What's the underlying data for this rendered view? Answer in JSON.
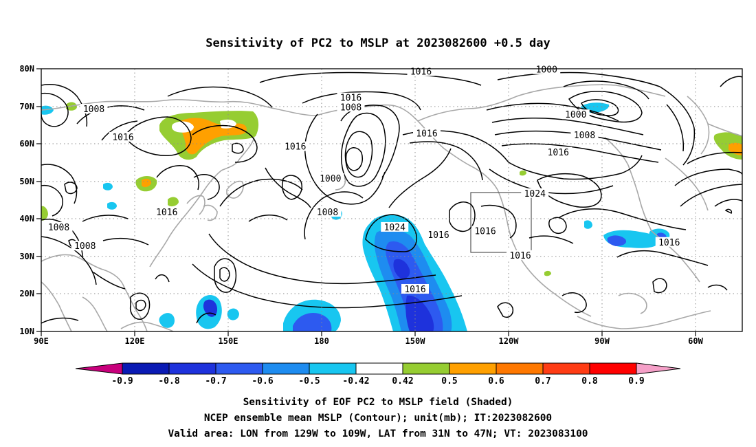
{
  "title": "Sensitivity of PC2 to MSLP at 2023082600 +0.5 day",
  "map": {
    "lat_labels": [
      "80N",
      "70N",
      "60N",
      "50N",
      "40N",
      "30N",
      "20N",
      "10N"
    ],
    "lon_labels": [
      "90E",
      "120E",
      "150E",
      "180",
      "150W",
      "120W",
      "90W",
      "60W"
    ],
    "contour_labels": [
      {
        "text": "1016",
        "lon": -140,
        "lat": 79
      },
      {
        "text": "1000",
        "lon": -97,
        "lat": 79.5
      },
      {
        "text": "1016",
        "lon": -164,
        "lat": 72
      },
      {
        "text": "1008",
        "lon": -164,
        "lat": 69.5
      },
      {
        "text": "1008",
        "lon": 108,
        "lat": 69
      },
      {
        "text": "1000",
        "lon": -87,
        "lat": 67.5
      },
      {
        "text": "1016",
        "lon": -138,
        "lat": 62.5
      },
      {
        "text": "1016",
        "lon": 118,
        "lat": 61.5
      },
      {
        "text": "1008",
        "lon": -84,
        "lat": 62
      },
      {
        "text": "1016",
        "lon": 177,
        "lat": 59
      },
      {
        "text": "1016",
        "lon": -93,
        "lat": 57.5
      },
      {
        "text": "1000",
        "lon": -171,
        "lat": 50.5
      },
      {
        "text": "1024",
        "lon": -101,
        "lat": 46.5
      },
      {
        "text": "1016",
        "lon": 133,
        "lat": 41.5
      },
      {
        "text": "1008",
        "lon": -172,
        "lat": 41.5
      },
      {
        "text": "1024",
        "lon": -149,
        "lat": 37.5
      },
      {
        "text": "1016",
        "lon": -134,
        "lat": 35.5
      },
      {
        "text": "1016",
        "lon": -118,
        "lat": 36.5
      },
      {
        "text": "1008",
        "lon": 96,
        "lat": 37.5
      },
      {
        "text": "1016",
        "lon": -55,
        "lat": 33.5
      },
      {
        "text": "1008",
        "lon": 105,
        "lat": 32.5
      },
      {
        "text": "1016",
        "lon": -106,
        "lat": 30
      },
      {
        "text": "1016",
        "lon": -142,
        "lat": 21
      }
    ]
  },
  "colorbar": {
    "labels": [
      "-0.9",
      "-0.8",
      "-0.7",
      "-0.6",
      "-0.5",
      "-0.42",
      "0.42",
      "0.5",
      "0.6",
      "0.7",
      "0.8",
      "0.9"
    ],
    "colors": [
      "#c8007c",
      "#0a1ab4",
      "#1e32dc",
      "#2d5af0",
      "#1e8cf0",
      "#18c6f0",
      "#ffffff",
      "#96cd32",
      "#ffa000",
      "#ff7800",
      "#ff3c14",
      "#ff0000",
      "#f5a0c8"
    ]
  },
  "caption": {
    "line1": "Sensitivity of EOF PC2 to MSLP field (Shaded)",
    "line2": "NCEP ensemble mean MSLP (Contour); unit(mb); IT:2023082600",
    "line3": "Valid area: LON from 129W to 109W, LAT from 31N to 47N; VT: 2023083100"
  }
}
